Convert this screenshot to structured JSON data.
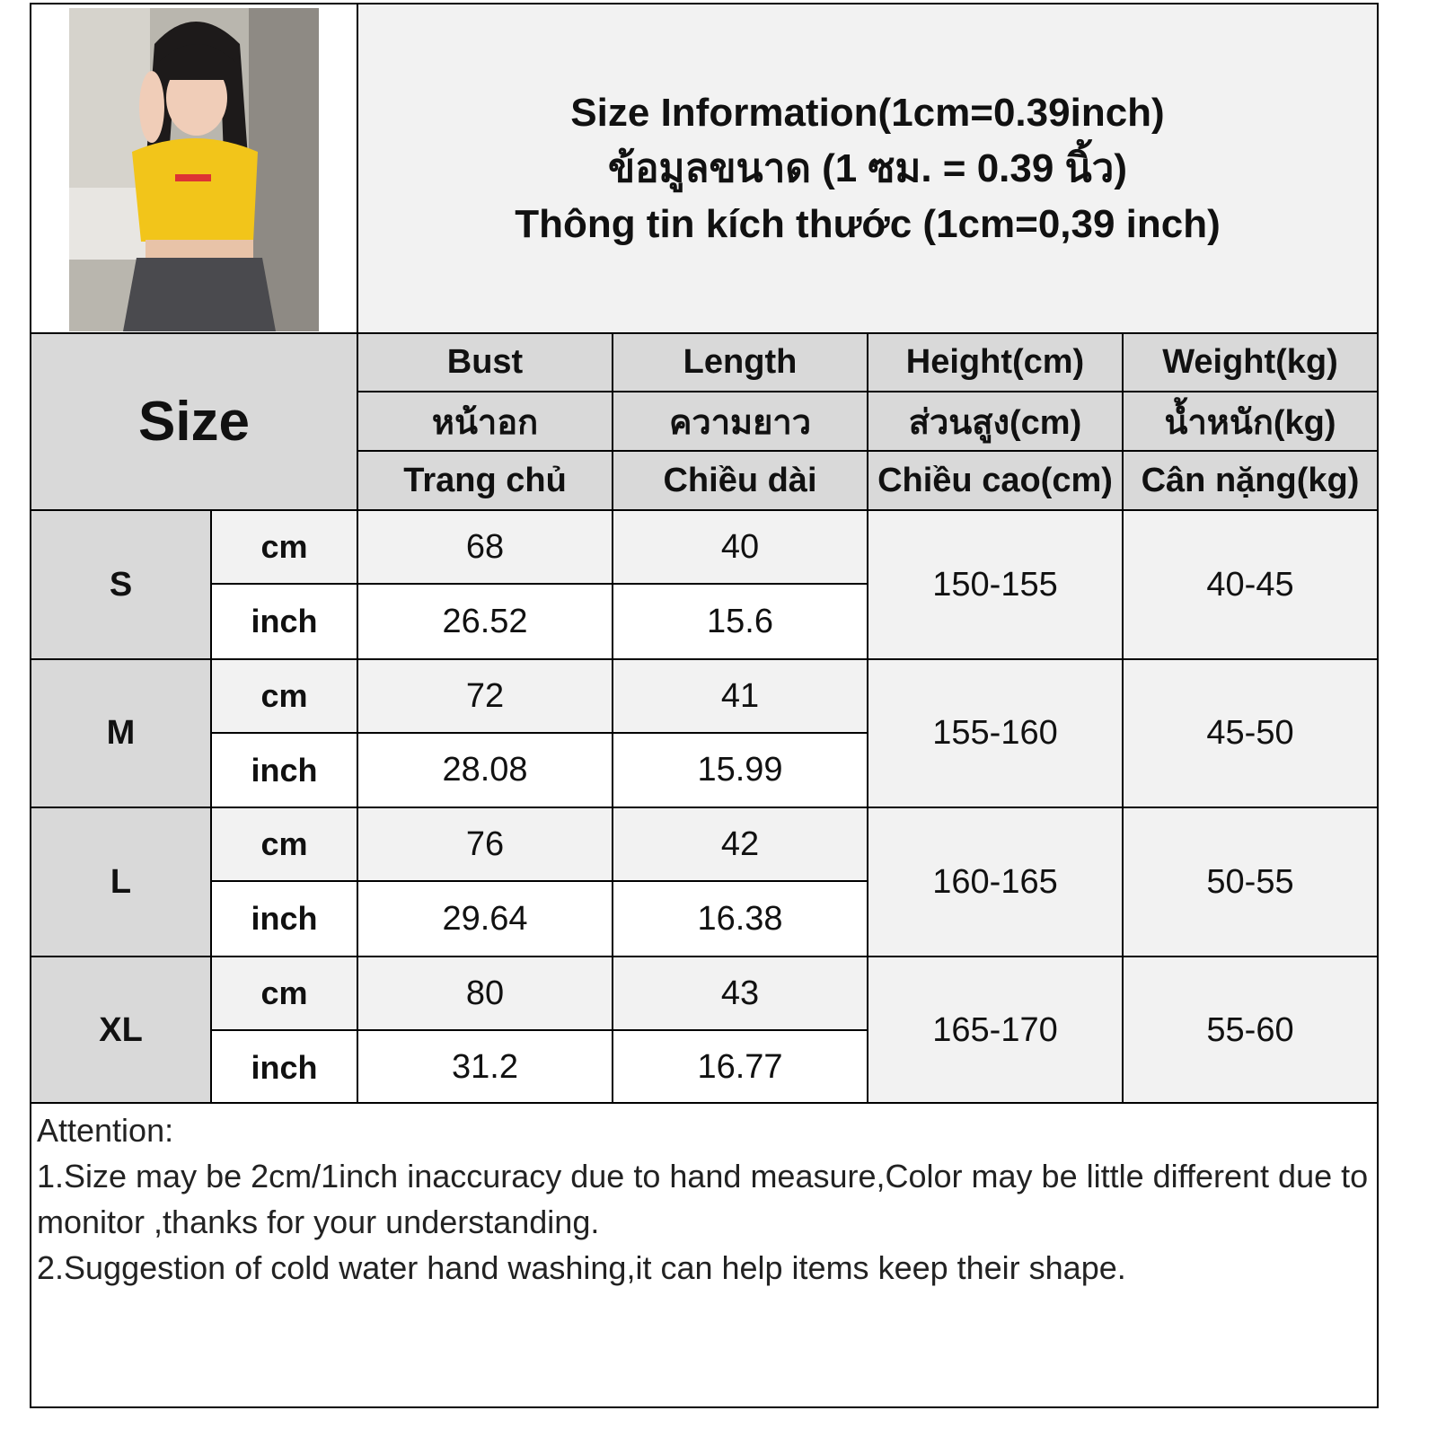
{
  "title": {
    "line1": "Size Information(1cm=0.39inch)",
    "line2": "ข้อมูลขนาด (1 ซม. = 0.39 นิ้ว)",
    "line3": "Thông tin kích thước (1cm=0,39 inch)"
  },
  "header": {
    "size_label": "Size",
    "columns": [
      {
        "en": "Bust",
        "th": "หน้าอก",
        "vi": "Trang chủ"
      },
      {
        "en": "Length",
        "th": "ความยาว",
        "vi": "Chiều dài"
      },
      {
        "en": "Height(cm)",
        "th": "ส่วนสูง(cm)",
        "vi": "Chiều cao(cm)"
      },
      {
        "en": "Weight(kg)",
        "th": "น้ำหนัก(kg)",
        "vi": "Cân nặng(kg)"
      }
    ]
  },
  "units": {
    "cm": "cm",
    "inch": "inch"
  },
  "rows": [
    {
      "size": "S",
      "bust_cm": "68",
      "length_cm": "40",
      "bust_inch": "26.52",
      "length_inch": "15.6",
      "height": "150-155",
      "weight": "40-45"
    },
    {
      "size": "M",
      "bust_cm": "72",
      "length_cm": "41",
      "bust_inch": "28.08",
      "length_inch": "15.99",
      "height": "155-160",
      "weight": "45-50"
    },
    {
      "size": "L",
      "bust_cm": "76",
      "length_cm": "42",
      "bust_inch": "29.64",
      "length_inch": "16.38",
      "height": "160-165",
      "weight": "50-55"
    },
    {
      "size": "XL",
      "bust_cm": "80",
      "length_cm": "43",
      "bust_inch": "31.2",
      "length_inch": "16.77",
      "height": "165-170",
      "weight": "55-60"
    }
  ],
  "attention": {
    "heading": "Attention:",
    "line1": "1.Size may be 2cm/1inch inaccuracy due to hand measure,Color may be little different due to monitor ,thanks for your understanding.",
    "line2": "2.Suggestion of cold water hand washing,it can help items keep their shape."
  },
  "colors": {
    "header_bg": "#d9d9d9",
    "light_bg": "#f2f2f2",
    "shirt": "#f2c51a"
  }
}
